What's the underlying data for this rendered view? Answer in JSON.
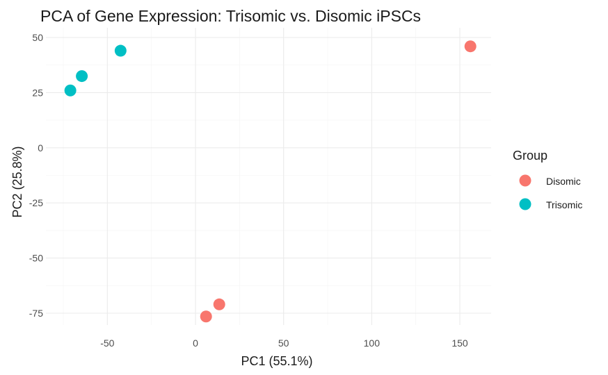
{
  "chart_data": {
    "type": "scatter",
    "title": "PCA of Gene Expression: Trisomic vs. Disomic iPSCs",
    "xlabel": "PC1 (55.1%)",
    "ylabel": "PC2 (25.8%)",
    "xlim": [
      -83,
      167
    ],
    "ylim": [
      -79,
      52
    ],
    "xticks": [
      -50,
      0,
      50,
      100,
      150
    ],
    "yticks": [
      50,
      25,
      0,
      -25,
      -50,
      -75
    ],
    "xtick_labels": [
      "-50",
      "0",
      "50",
      "100",
      "150"
    ],
    "ytick_labels": [
      "50",
      "25",
      "0",
      "-25",
      "-50",
      "-75"
    ],
    "grid": true,
    "legend": {
      "title": "Group",
      "placement": "right"
    },
    "series": [
      {
        "name": "Disomic",
        "color": "#F8766D",
        "points": [
          {
            "x": 156,
            "y": 46
          },
          {
            "x": 6,
            "y": -76.5
          },
          {
            "x": 13.5,
            "y": -71
          }
        ]
      },
      {
        "name": "Trisomic",
        "color": "#00BFC4",
        "points": [
          {
            "x": -42.5,
            "y": 44
          },
          {
            "x": -64.5,
            "y": 32.5
          },
          {
            "x": -71,
            "y": 26
          }
        ]
      }
    ]
  }
}
